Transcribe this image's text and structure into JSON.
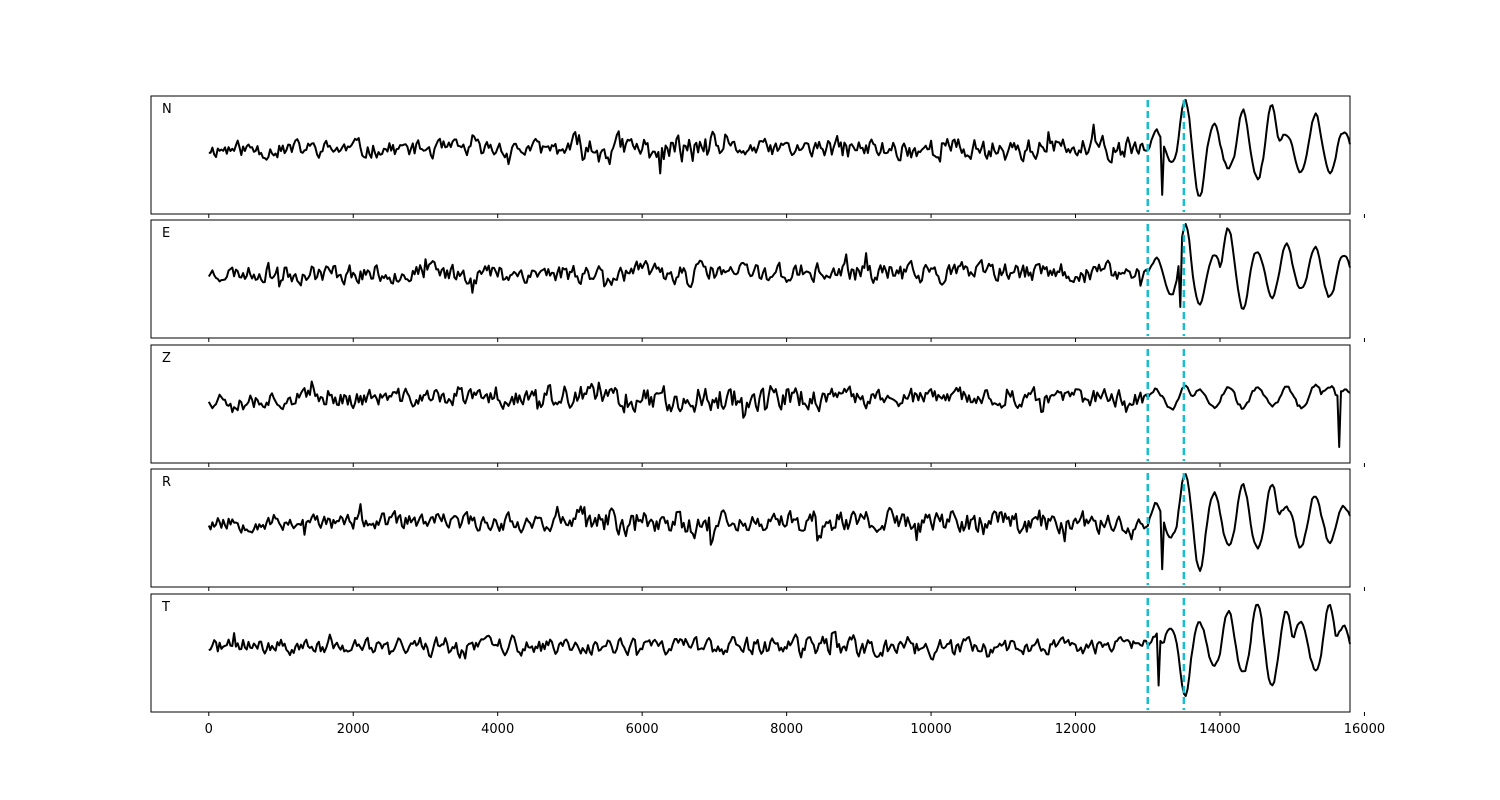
{
  "chart_data": {
    "type": "line",
    "xlabel": "",
    "ylabel": "",
    "xlim": [
      -800,
      15800
    ],
    "xticks": [
      0,
      2000,
      4000,
      6000,
      8000,
      10000,
      12000,
      14000,
      16000
    ],
    "xtick_labels": [
      "0",
      "2000",
      "4000",
      "6000",
      "8000",
      "10000",
      "12000",
      "14000",
      "16000"
    ],
    "sample_count": 15800,
    "grid": false,
    "trace_color": "#000000",
    "marker_color": "#17becf",
    "markers": [
      13000,
      13500
    ],
    "panels": [
      {
        "label": "N",
        "seed": 11,
        "baseline": 0,
        "noise_amp": 0.18,
        "burst": [
          [
            5000,
            7000,
            1.7
          ],
          [
            8500,
            12800,
            1.35
          ]
        ],
        "event_amp": 2.6,
        "event_pattern": [
          0.35,
          -0.25,
          1.0,
          -1.0,
          0.55,
          -0.4,
          0.8,
          -0.6,
          0.9,
          0.3,
          -0.5,
          0.7,
          -0.45,
          0.35
        ],
        "min_at": [
          13200,
          -1.0
        ]
      },
      {
        "label": "E",
        "seed": 23,
        "baseline": 0,
        "noise_amp": 0.22,
        "burst": [
          [
            800,
            12800,
            1.25
          ]
        ],
        "event_amp": 2.7,
        "event_pattern": [
          0.3,
          -0.5,
          1.0,
          -0.65,
          0.4,
          0.9,
          -0.75,
          0.45,
          -0.5,
          0.6,
          -0.35,
          0.55,
          -0.5,
          0.4
        ],
        "min_at": [
          13450,
          -0.78
        ]
      },
      {
        "label": "Z",
        "seed": 37,
        "baseline": 0,
        "noise_amp": 0.42,
        "burst": [
          [
            4500,
            8500,
            1.45
          ]
        ],
        "event_amp": 1.3,
        "event_pattern": [
          0.3,
          -0.45,
          0.5,
          0.35,
          -0.3,
          0.45,
          -0.4,
          0.35,
          -0.3,
          0.4,
          -0.35,
          0.5,
          0.45,
          0.3
        ],
        "min_at": [
          15650,
          -1.0
        ]
      },
      {
        "label": "R",
        "seed": 53,
        "baseline": 0,
        "noise_amp": 0.16,
        "burst": [
          [
            5000,
            7000,
            1.6
          ],
          [
            8000,
            12800,
            1.4
          ]
        ],
        "event_amp": 2.5,
        "event_pattern": [
          0.4,
          -0.3,
          1.0,
          -1.0,
          0.6,
          -0.45,
          0.75,
          -0.55,
          0.8,
          0.3,
          -0.5,
          0.55,
          -0.4,
          0.3
        ],
        "min_at": [
          13200,
          -1.0
        ]
      },
      {
        "label": "T",
        "seed": 71,
        "baseline": 0,
        "noise_amp": 0.2,
        "burst": [
          [
            2500,
            4200,
            1.35
          ],
          [
            6500,
            10500,
            1.3
          ]
        ],
        "event_amp": 2.8,
        "event_pattern": [
          0.25,
          0.4,
          -1.0,
          0.5,
          -0.4,
          0.7,
          -0.55,
          0.9,
          -0.8,
          0.75,
          0.5,
          -0.45,
          0.85,
          0.4
        ],
        "min_at": [
          13150,
          -0.9
        ]
      }
    ]
  }
}
